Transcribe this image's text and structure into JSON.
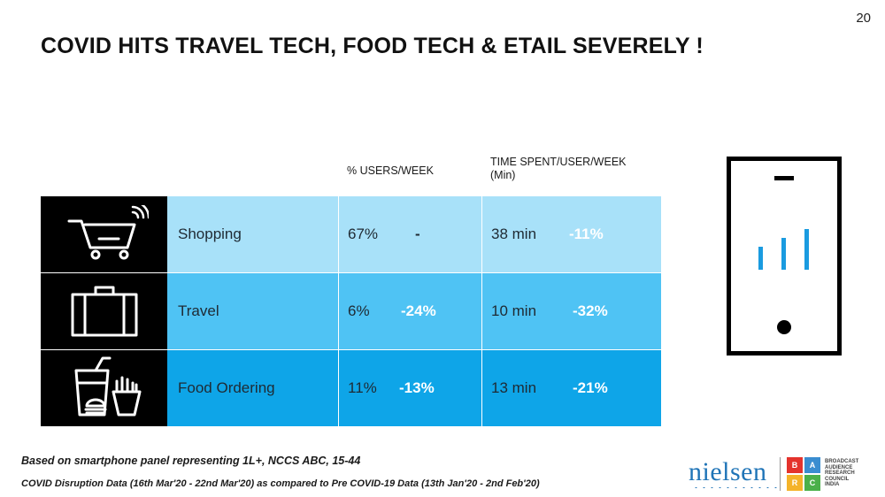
{
  "page_number": "20",
  "title": "COVID HITS TRAVEL TECH, FOOD TECH & ETAIL SEVERELY  !",
  "columns": {
    "users_week": "% USERS/WEEK",
    "time_spent_line1": "TIME SPENT/USER/WEEK",
    "time_spent_line2": "(Min)"
  },
  "rows": [
    {
      "icon": "shopping-cart-icon",
      "category": "Shopping",
      "users": "67%",
      "users_change": "-",
      "time": "38 min",
      "time_change": "-11%"
    },
    {
      "icon": "suitcase-icon",
      "category": "Travel",
      "users": "6%",
      "users_change": "-24%",
      "time": "10 min",
      "time_change": "-32%"
    },
    {
      "icon": "fast-food-icon",
      "category": "Food Ordering",
      "users": "11%",
      "users_change": "-13%",
      "time": "13 min",
      "time_change": "-21%"
    }
  ],
  "colors": {
    "row1": "#a8e1f9",
    "row2": "#4fc3f4",
    "row3": "#0ea5e8",
    "icon_bg": "#000000",
    "phone_bars": "#1a9be0"
  },
  "footnotes": {
    "line1": "Based on smartphone panel representing 1L+, NCCS ABC, 15-44",
    "line2": "COVID Disruption Data (16th Mar'20 - 22nd Mar'20) as compared to Pre COVID-19 Data (13th Jan'20 - 2nd Feb'20)"
  },
  "logos": {
    "nielsen": "nielsen",
    "barc_letters": [
      "B",
      "A",
      "R",
      "C"
    ],
    "barc_colors": [
      "#e4332d",
      "#3a8dd0",
      "#f4b32a",
      "#4bb04a"
    ],
    "barc_text_lines": [
      "BROADCAST",
      "AUDIENCE",
      "RESEARCH",
      "COUNCIL",
      "INDIA"
    ]
  }
}
